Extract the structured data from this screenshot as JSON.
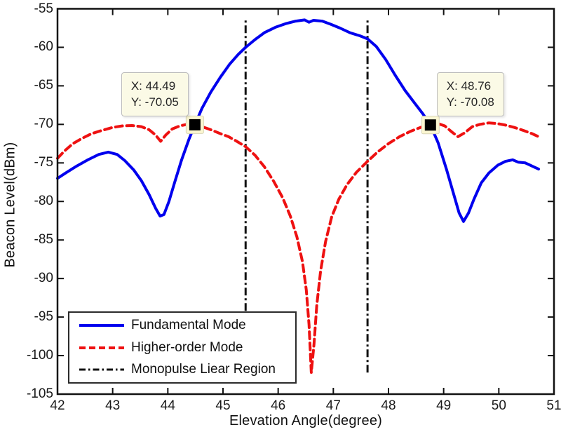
{
  "figure": {
    "background": "#ffffff",
    "axis_color": "#111111"
  },
  "chart_data": {
    "type": "line",
    "title": "",
    "xlabel": "Elevation Angle(degree)",
    "ylabel": "Beacon Level(dBm)",
    "xlim": [
      42,
      51
    ],
    "ylim": [
      -105,
      -55
    ],
    "xticks": [
      42,
      43,
      44,
      45,
      46,
      47,
      48,
      49,
      50,
      51
    ],
    "yticks": [
      -55,
      -60,
      -65,
      -70,
      -75,
      -80,
      -85,
      -90,
      -95,
      -100,
      -105
    ],
    "grid": false,
    "tick_direction": "in",
    "legend_position": "bottom-left",
    "series": [
      {
        "name": "Fundamental Mode",
        "color": "#0000EE",
        "line_style": "solid",
        "line_width": 4,
        "points": [
          [
            42.0,
            -77.0
          ],
          [
            42.15,
            -76.3
          ],
          [
            42.35,
            -75.4
          ],
          [
            42.55,
            -74.6
          ],
          [
            42.75,
            -73.9
          ],
          [
            42.92,
            -73.6
          ],
          [
            43.08,
            -73.9
          ],
          [
            43.22,
            -74.7
          ],
          [
            43.38,
            -75.9
          ],
          [
            43.52,
            -77.3
          ],
          [
            43.66,
            -79.1
          ],
          [
            43.78,
            -80.9
          ],
          [
            43.86,
            -81.9
          ],
          [
            43.93,
            -81.7
          ],
          [
            44.02,
            -80.0
          ],
          [
            44.12,
            -77.6
          ],
          [
            44.25,
            -74.6
          ],
          [
            44.38,
            -72.0
          ],
          [
            44.49,
            -70.05
          ],
          [
            44.62,
            -67.9
          ],
          [
            44.78,
            -65.8
          ],
          [
            44.95,
            -63.9
          ],
          [
            45.12,
            -62.2
          ],
          [
            45.28,
            -60.9
          ],
          [
            45.41,
            -60.0
          ],
          [
            45.58,
            -59.0
          ],
          [
            45.75,
            -58.1
          ],
          [
            45.95,
            -57.4
          ],
          [
            46.15,
            -56.9
          ],
          [
            46.32,
            -56.6
          ],
          [
            46.48,
            -56.45
          ],
          [
            46.56,
            -56.75
          ],
          [
            46.64,
            -56.5
          ],
          [
            46.8,
            -56.6
          ],
          [
            46.95,
            -57.0
          ],
          [
            47.12,
            -57.5
          ],
          [
            47.3,
            -58.1
          ],
          [
            47.48,
            -58.5
          ],
          [
            47.62,
            -58.9
          ],
          [
            47.78,
            -59.9
          ],
          [
            47.95,
            -61.6
          ],
          [
            48.12,
            -63.6
          ],
          [
            48.3,
            -65.6
          ],
          [
            48.48,
            -67.3
          ],
          [
            48.62,
            -68.6
          ],
          [
            48.76,
            -70.08
          ],
          [
            48.9,
            -72.4
          ],
          [
            49.05,
            -75.8
          ],
          [
            49.18,
            -79.0
          ],
          [
            49.28,
            -81.5
          ],
          [
            49.36,
            -82.6
          ],
          [
            49.45,
            -81.5
          ],
          [
            49.55,
            -79.7
          ],
          [
            49.68,
            -77.6
          ],
          [
            49.82,
            -76.3
          ],
          [
            49.98,
            -75.3
          ],
          [
            50.12,
            -74.8
          ],
          [
            50.25,
            -74.6
          ],
          [
            50.35,
            -74.9
          ],
          [
            50.48,
            -75.0
          ],
          [
            50.6,
            -75.4
          ],
          [
            50.72,
            -75.8
          ]
        ]
      },
      {
        "name": "Higher-order Mode",
        "color": "#EE1111",
        "line_style": "dashed",
        "line_width": 4,
        "points": [
          [
            42.0,
            -74.4
          ],
          [
            42.12,
            -73.5
          ],
          [
            42.28,
            -72.5
          ],
          [
            42.45,
            -71.8
          ],
          [
            42.62,
            -71.2
          ],
          [
            42.8,
            -70.8
          ],
          [
            43.0,
            -70.4
          ],
          [
            43.18,
            -70.2
          ],
          [
            43.35,
            -70.15
          ],
          [
            43.52,
            -70.3
          ],
          [
            43.66,
            -70.7
          ],
          [
            43.78,
            -71.4
          ],
          [
            43.87,
            -72.2
          ],
          [
            43.96,
            -71.4
          ],
          [
            44.08,
            -70.6
          ],
          [
            44.22,
            -70.2
          ],
          [
            44.35,
            -70.0
          ],
          [
            44.49,
            -70.05
          ],
          [
            44.62,
            -70.3
          ],
          [
            44.78,
            -70.7
          ],
          [
            44.95,
            -71.2
          ],
          [
            45.1,
            -71.6
          ],
          [
            45.25,
            -72.2
          ],
          [
            45.41,
            -72.9
          ],
          [
            45.58,
            -74.0
          ],
          [
            45.75,
            -75.5
          ],
          [
            45.92,
            -77.4
          ],
          [
            46.08,
            -79.5
          ],
          [
            46.22,
            -81.9
          ],
          [
            46.34,
            -84.6
          ],
          [
            46.44,
            -87.8
          ],
          [
            46.51,
            -91.5
          ],
          [
            46.56,
            -96.0
          ],
          [
            46.6,
            -102.2
          ],
          [
            46.65,
            -98.5
          ],
          [
            46.7,
            -93.5
          ],
          [
            46.77,
            -89.0
          ],
          [
            46.86,
            -85.2
          ],
          [
            46.97,
            -82.0
          ],
          [
            47.1,
            -79.7
          ],
          [
            47.25,
            -77.8
          ],
          [
            47.42,
            -76.2
          ],
          [
            47.62,
            -74.8
          ],
          [
            47.8,
            -73.6
          ],
          [
            48.0,
            -72.5
          ],
          [
            48.2,
            -71.6
          ],
          [
            48.4,
            -70.9
          ],
          [
            48.58,
            -70.4
          ],
          [
            48.76,
            -70.08
          ],
          [
            48.9,
            -69.9
          ],
          [
            49.02,
            -70.2
          ],
          [
            49.15,
            -71.0
          ],
          [
            49.26,
            -71.6
          ],
          [
            49.38,
            -71.1
          ],
          [
            49.52,
            -70.3
          ],
          [
            49.66,
            -70.0
          ],
          [
            49.82,
            -69.8
          ],
          [
            49.98,
            -69.9
          ],
          [
            50.12,
            -70.1
          ],
          [
            50.28,
            -70.4
          ],
          [
            50.45,
            -70.8
          ],
          [
            50.6,
            -71.2
          ],
          [
            50.72,
            -71.6
          ]
        ]
      },
      {
        "name": "Monopulse Liear Region",
        "color": "#111111",
        "line_style": "dash-dot",
        "line_width": 3,
        "vlines_x": [
          45.41,
          47.62
        ],
        "vline_y_extent": [
          -102.2,
          -56.45
        ]
      }
    ],
    "annotations": [
      {
        "x": 44.49,
        "y": -70.05,
        "label_x": "X: 44.49",
        "label_y": "Y: -70.05",
        "box_side": "left"
      },
      {
        "x": 48.76,
        "y": -70.08,
        "label_x": "X: 48.76",
        "label_y": "Y: -70.08",
        "box_side": "right"
      }
    ],
    "colors": {
      "tooltip_bg": "#FBFAE6",
      "tooltip_border": "#BDBDBD",
      "marker_halo": "#FBF7D2",
      "marker": "#000000"
    }
  }
}
